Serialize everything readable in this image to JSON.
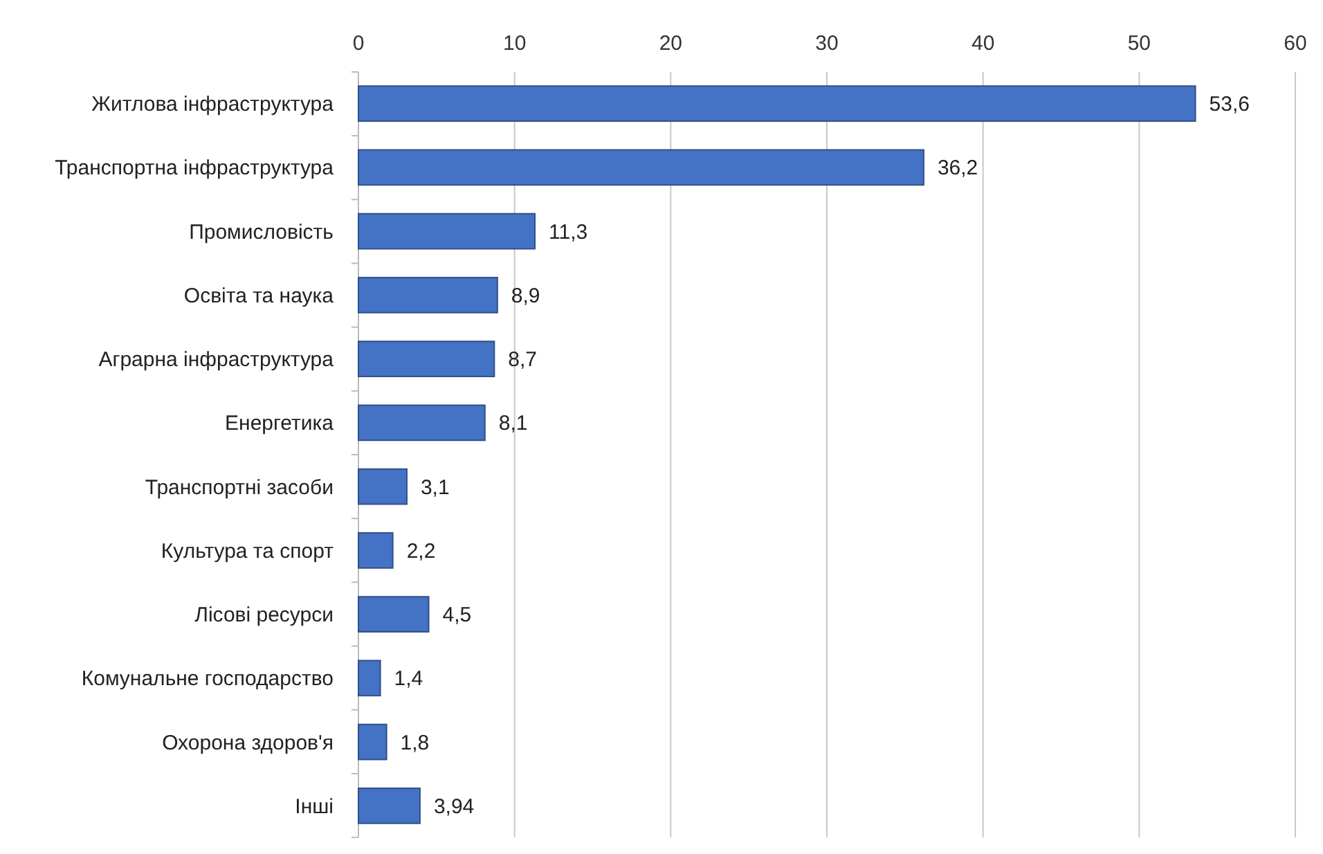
{
  "chart_data": {
    "type": "bar",
    "orientation": "horizontal",
    "categories": [
      "Житлова інфраструктура",
      "Транспортна інфраструктура",
      "Промисловість",
      "Освіта та наука",
      "Аграрна інфраструктура",
      "Енергетика",
      "Транспортні засоби",
      "Культура та спорт",
      "Лісові ресурси",
      "Комунальне господарство",
      "Охорона здоров'я",
      "Інші"
    ],
    "values": [
      53.6,
      36.2,
      11.3,
      8.9,
      8.7,
      8.1,
      3.1,
      2.2,
      4.5,
      1.4,
      1.8,
      3.94
    ],
    "value_labels": [
      "53,6",
      "36,2",
      "11,3",
      "8,9",
      "8,7",
      "8,1",
      "3,1",
      "2,2",
      "4,5",
      "1,4",
      "1,8",
      "3,94"
    ],
    "color": "#4472c4",
    "xlim": [
      0,
      60
    ],
    "xticks": [
      0,
      10,
      20,
      30,
      40,
      50,
      60
    ],
    "grid": "x"
  }
}
